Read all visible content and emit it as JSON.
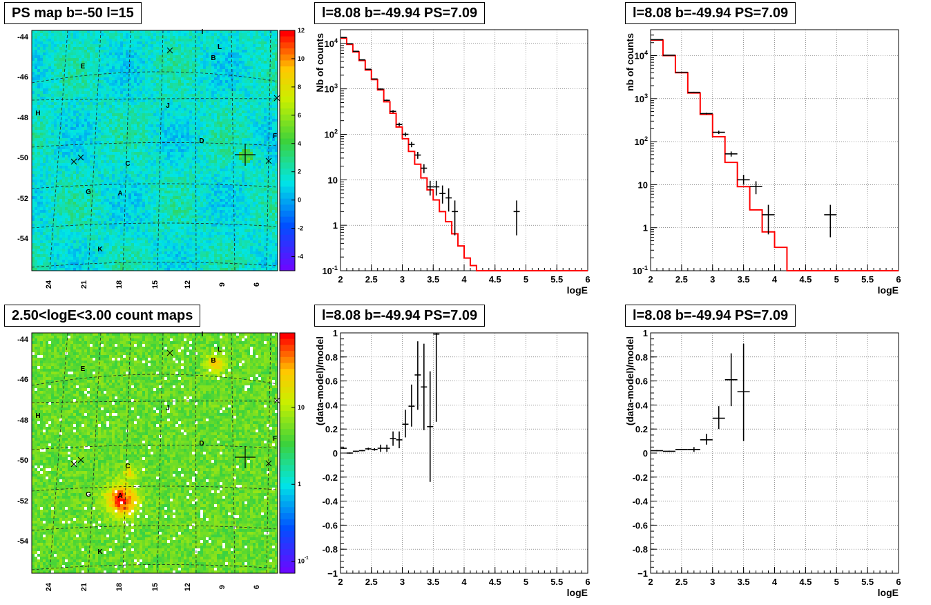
{
  "titles": {
    "ps_map": "PS map b=-50 l=15",
    "spec1": "l=8.08 b=-49.94 PS=7.09",
    "spec2": "l=8.08 b=-49.94 PS=7.09",
    "count_map": "2.50<logE<3.00 count maps",
    "res1": "l=8.08 b=-49.94 PS=7.09",
    "res2": "l=8.08 b=-49.94 PS=7.09"
  },
  "chart_data": [
    {
      "id": "ps_map",
      "type": "heatmap",
      "title": "PS map b=-50 l=15",
      "y_ticks": [
        "-44",
        "-46",
        "-48",
        "-50",
        "-52",
        "-54"
      ],
      "x_ticks": [
        "24",
        "21",
        "18",
        "15",
        "12",
        "9",
        "6"
      ],
      "colorbar_ticks": [
        "12",
        "10",
        "8",
        "6",
        "4",
        "2",
        "0",
        "-2",
        "-4"
      ],
      "colorbar_range": [
        -5,
        12
      ],
      "source_labels": [
        "I",
        "L",
        "B",
        "E",
        "H",
        "J",
        "D",
        "F",
        "C",
        "G",
        "A",
        "K"
      ]
    },
    {
      "id": "spec1",
      "type": "line",
      "title": "l=8.08 b=-49.94 PS=7.09",
      "xlabel": "logE",
      "ylabel": "Nb of counts",
      "log_y": true,
      "xlim": [
        2,
        6
      ],
      "ylim": [
        0.1,
        20000
      ],
      "x_ticks": [
        "2",
        "2.5",
        "3",
        "3.5",
        "4",
        "4.5",
        "5",
        "5.5",
        "6"
      ],
      "y_ticks": [
        "10^4",
        "10^3",
        "10^2",
        "10",
        "1",
        "10^-1"
      ],
      "grid": true,
      "model_step": {
        "edges": [
          2,
          2.1,
          2.2,
          2.3,
          2.4,
          2.5,
          2.6,
          2.7,
          2.8,
          2.9,
          3.0,
          3.1,
          3.2,
          3.3,
          3.4,
          3.5,
          3.6,
          3.7,
          3.8,
          3.9,
          4.0,
          4.1,
          4.2,
          6.0
        ],
        "values": [
          13000,
          9500,
          6500,
          4200,
          2600,
          1600,
          950,
          520,
          290,
          145,
          80,
          42,
          22,
          11,
          6,
          3.6,
          2.0,
          1.2,
          0.65,
          0.35,
          0.19,
          0.13,
          0.1
        ]
      },
      "data_points": [
        {
          "x": 2.05,
          "y": 13500,
          "xerr": 0.05,
          "ylo": 13300,
          "yhi": 13700
        },
        {
          "x": 2.15,
          "y": 9800,
          "xerr": 0.05,
          "ylo": 9650,
          "yhi": 9950
        },
        {
          "x": 2.25,
          "y": 6700,
          "xerr": 0.05,
          "ylo": 6600,
          "yhi": 6800
        },
        {
          "x": 2.35,
          "y": 4350,
          "xerr": 0.05,
          "ylo": 4270,
          "yhi": 4430
        },
        {
          "x": 2.45,
          "y": 2700,
          "xerr": 0.05,
          "ylo": 2640,
          "yhi": 2760
        },
        {
          "x": 2.55,
          "y": 1650,
          "xerr": 0.05,
          "ylo": 1610,
          "yhi": 1690
        },
        {
          "x": 2.65,
          "y": 990,
          "xerr": 0.05,
          "ylo": 960,
          "yhi": 1020
        },
        {
          "x": 2.75,
          "y": 560,
          "xerr": 0.05,
          "ylo": 540,
          "yhi": 580
        },
        {
          "x": 2.85,
          "y": 320,
          "xerr": 0.05,
          "ylo": 300,
          "yhi": 340
        },
        {
          "x": 2.95,
          "y": 165,
          "xerr": 0.05,
          "ylo": 150,
          "yhi": 180
        },
        {
          "x": 3.05,
          "y": 100,
          "xerr": 0.05,
          "ylo": 90,
          "yhi": 110
        },
        {
          "x": 3.15,
          "y": 60,
          "xerr": 0.05,
          "ylo": 52,
          "yhi": 68
        },
        {
          "x": 3.25,
          "y": 35,
          "xerr": 0.05,
          "ylo": 29,
          "yhi": 41
        },
        {
          "x": 3.35,
          "y": 18,
          "xerr": 0.05,
          "ylo": 14,
          "yhi": 22
        },
        {
          "x": 3.45,
          "y": 7,
          "xerr": 0.05,
          "ylo": 4.5,
          "yhi": 9.5
        },
        {
          "x": 3.55,
          "y": 7,
          "xerr": 0.05,
          "ylo": 4.5,
          "yhi": 9.5
        },
        {
          "x": 3.65,
          "y": 5,
          "xerr": 0.05,
          "ylo": 3,
          "yhi": 7.5
        },
        {
          "x": 3.75,
          "y": 4,
          "xerr": 0.05,
          "ylo": 2,
          "yhi": 6.5
        },
        {
          "x": 3.85,
          "y": 2,
          "xerr": 0.05,
          "ylo": 0.6,
          "yhi": 3.5
        },
        {
          "x": 4.85,
          "y": 2,
          "xerr": 0.05,
          "ylo": 0.6,
          "yhi": 3.5
        }
      ]
    },
    {
      "id": "spec2",
      "type": "line",
      "title": "l=8.08 b=-49.94 PS=7.09",
      "xlabel": "logE",
      "ylabel": "nb of counts",
      "log_y": true,
      "xlim": [
        2,
        6
      ],
      "ylim": [
        0.1,
        40000
      ],
      "x_ticks": [
        "2",
        "2.5",
        "3",
        "3.5",
        "4",
        "4.5",
        "5",
        "5.5",
        "6"
      ],
      "y_ticks": [
        "10^4",
        "10^3",
        "10^2",
        "10",
        "1",
        "10^-1"
      ],
      "grid": true,
      "model_step": {
        "edges": [
          2,
          2.2,
          2.4,
          2.6,
          2.8,
          3.0,
          3.2,
          3.4,
          3.6,
          3.8,
          4.0,
          4.2,
          6.0
        ],
        "values": [
          23000,
          10000,
          4000,
          1350,
          430,
          130,
          33,
          9,
          2.6,
          0.8,
          0.35,
          0.1
        ]
      },
      "data_points": [
        {
          "x": 2.1,
          "y": 23500,
          "xerr": 0.1,
          "ylo": 23200,
          "yhi": 23800
        },
        {
          "x": 2.3,
          "y": 10200,
          "xerr": 0.1,
          "ylo": 10050,
          "yhi": 10350
        },
        {
          "x": 2.5,
          "y": 4100,
          "xerr": 0.1,
          "ylo": 4020,
          "yhi": 4180
        },
        {
          "x": 2.7,
          "y": 1400,
          "xerr": 0.1,
          "ylo": 1360,
          "yhi": 1440
        },
        {
          "x": 2.9,
          "y": 450,
          "xerr": 0.1,
          "ylo": 430,
          "yhi": 470
        },
        {
          "x": 3.1,
          "y": 165,
          "xerr": 0.1,
          "ylo": 150,
          "yhi": 180
        },
        {
          "x": 3.3,
          "y": 52,
          "xerr": 0.1,
          "ylo": 45,
          "yhi": 59
        },
        {
          "x": 3.5,
          "y": 13,
          "xerr": 0.1,
          "ylo": 10,
          "yhi": 17
        },
        {
          "x": 3.7,
          "y": 9,
          "xerr": 0.1,
          "ylo": 6,
          "yhi": 12
        },
        {
          "x": 3.9,
          "y": 2,
          "xerr": 0.1,
          "ylo": 0.7,
          "yhi": 3.4
        },
        {
          "x": 4.9,
          "y": 2,
          "xerr": 0.1,
          "ylo": 0.6,
          "yhi": 3.4
        }
      ]
    },
    {
      "id": "count_map",
      "type": "heatmap",
      "title": "2.50<logE<3.00 count maps",
      "y_ticks": [
        "-44",
        "-46",
        "-48",
        "-50",
        "-52",
        "-54"
      ],
      "x_ticks": [
        "24",
        "21",
        "18",
        "15",
        "12",
        "9",
        "6"
      ],
      "colorbar_ticks": [
        "10",
        "1",
        "10^-1"
      ],
      "log_colorbar": true,
      "source_labels": [
        "I",
        "L",
        "B",
        "E",
        "H",
        "J",
        "D",
        "F",
        "C",
        "G",
        "A",
        "K"
      ]
    },
    {
      "id": "res1",
      "type": "scatter",
      "title": "l=8.08 b=-49.94 PS=7.09",
      "xlabel": "logE",
      "ylabel": "(data-model)/model",
      "xlim": [
        2,
        6
      ],
      "ylim": [
        -1,
        1
      ],
      "x_ticks": [
        "2",
        "2.5",
        "3",
        "3.5",
        "4",
        "4.5",
        "5",
        "5.5",
        "6"
      ],
      "y_ticks": [
        "1",
        "0.8",
        "0.6",
        "0.4",
        "0.2",
        "0",
        "-0.2",
        "-0.4",
        "-0.6",
        "-0.8",
        "-1"
      ],
      "grid": true,
      "data_points": [
        {
          "x": 2.05,
          "y": 0.04,
          "xerr": 0.05,
          "ylo": 0.035,
          "yhi": 0.045
        },
        {
          "x": 2.15,
          "y": 0.0,
          "xerr": 0.05,
          "ylo": -0.005,
          "yhi": 0.005
        },
        {
          "x": 2.25,
          "y": 0.015,
          "xerr": 0.05,
          "ylo": 0.01,
          "yhi": 0.02
        },
        {
          "x": 2.35,
          "y": 0.02,
          "xerr": 0.05,
          "ylo": 0.015,
          "yhi": 0.025
        },
        {
          "x": 2.45,
          "y": 0.035,
          "xerr": 0.05,
          "ylo": 0.025,
          "yhi": 0.045
        },
        {
          "x": 2.55,
          "y": 0.03,
          "xerr": 0.05,
          "ylo": 0.02,
          "yhi": 0.04
        },
        {
          "x": 2.65,
          "y": 0.04,
          "xerr": 0.05,
          "ylo": 0.01,
          "yhi": 0.07
        },
        {
          "x": 2.75,
          "y": 0.04,
          "xerr": 0.05,
          "ylo": 0.01,
          "yhi": 0.07
        },
        {
          "x": 2.85,
          "y": 0.12,
          "xerr": 0.05,
          "ylo": 0.06,
          "yhi": 0.18
        },
        {
          "x": 2.95,
          "y": 0.11,
          "xerr": 0.05,
          "ylo": 0.04,
          "yhi": 0.18
        },
        {
          "x": 3.05,
          "y": 0.24,
          "xerr": 0.05,
          "ylo": 0.13,
          "yhi": 0.36
        },
        {
          "x": 3.15,
          "y": 0.39,
          "xerr": 0.05,
          "ylo": 0.22,
          "yhi": 0.57
        },
        {
          "x": 3.25,
          "y": 0.65,
          "xerr": 0.05,
          "ylo": 0.36,
          "yhi": 0.93
        },
        {
          "x": 3.35,
          "y": 0.55,
          "xerr": 0.05,
          "ylo": 0.19,
          "yhi": 0.91
        },
        {
          "x": 3.45,
          "y": 0.22,
          "xerr": 0.05,
          "ylo": -0.24,
          "yhi": 0.68
        },
        {
          "x": 3.55,
          "y": 0.99,
          "xerr": 0.05,
          "ylo": 0.26,
          "yhi": 1.0
        }
      ]
    },
    {
      "id": "res2",
      "type": "scatter",
      "title": "l=8.08 b=-49.94 PS=7.09",
      "xlabel": "logE",
      "ylabel": "(data-model)/model",
      "xlim": [
        2,
        6
      ],
      "ylim": [
        -1,
        1
      ],
      "x_ticks": [
        "2",
        "2.5",
        "3",
        "3.5",
        "4",
        "4.5",
        "5",
        "5.5",
        "6"
      ],
      "y_ticks": [
        "1",
        "0.8",
        "0.6",
        "0.4",
        "0.2",
        "0",
        "-0.2",
        "-0.4",
        "-0.6",
        "-0.8",
        "-1"
      ],
      "grid": true,
      "data_points": [
        {
          "x": 2.1,
          "y": 0.02,
          "xerr": 0.1,
          "ylo": 0.015,
          "yhi": 0.025
        },
        {
          "x": 2.3,
          "y": 0.015,
          "xerr": 0.1,
          "ylo": 0.01,
          "yhi": 0.02
        },
        {
          "x": 2.5,
          "y": 0.03,
          "xerr": 0.1,
          "ylo": 0.025,
          "yhi": 0.035
        },
        {
          "x": 2.7,
          "y": 0.03,
          "xerr": 0.1,
          "ylo": 0.01,
          "yhi": 0.05
        },
        {
          "x": 2.9,
          "y": 0.11,
          "xerr": 0.1,
          "ylo": 0.07,
          "yhi": 0.16
        },
        {
          "x": 3.1,
          "y": 0.29,
          "xerr": 0.1,
          "ylo": 0.2,
          "yhi": 0.39
        },
        {
          "x": 3.3,
          "y": 0.61,
          "xerr": 0.1,
          "ylo": 0.39,
          "yhi": 0.83
        },
        {
          "x": 3.5,
          "y": 0.51,
          "xerr": 0.1,
          "ylo": 0.1,
          "yhi": 0.91
        }
      ]
    }
  ]
}
